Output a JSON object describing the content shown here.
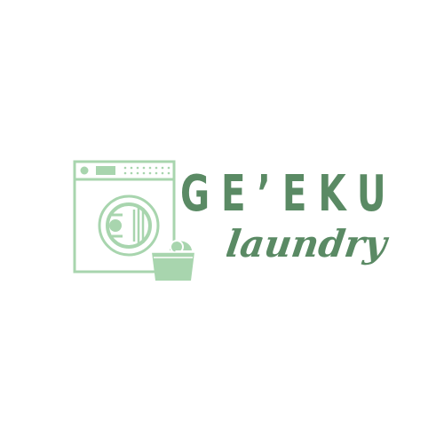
{
  "logo": {
    "brand_name": "GE’EKU",
    "tagline": "laundry",
    "icon": "washing-machine-with-laundry-basket-icon",
    "colors": {
      "icon": "#a8d5ae",
      "brand_text": "#5a8a64",
      "tagline_text": "#5a8a64",
      "background": "#ffffff"
    }
  }
}
